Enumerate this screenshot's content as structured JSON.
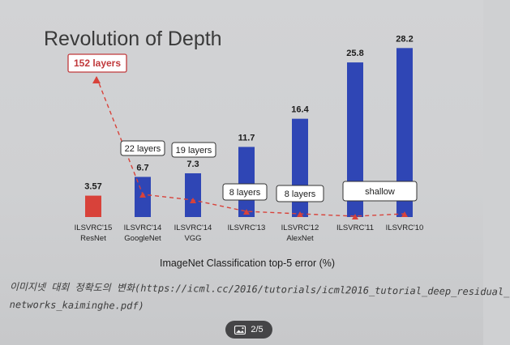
{
  "chart_data": {
    "type": "bar",
    "title": "Revolution of Depth",
    "xlabel": "ImageNet Classification top-5 error (%)",
    "ylabel": "",
    "ylim": [
      0,
      30
    ],
    "grid": false,
    "categories": [
      [
        "ILSVRC'15",
        "ResNet"
      ],
      [
        "ILSVRC'14",
        "GoogleNet"
      ],
      [
        "ILSVRC'14",
        "VGG"
      ],
      [
        "ILSVRC'13",
        ""
      ],
      [
        "ILSVRC'12",
        "AlexNet"
      ],
      [
        "ILSVRC'11",
        ""
      ],
      [
        "ILSVRC'10",
        ""
      ]
    ],
    "values": [
      3.57,
      6.7,
      7.3,
      11.7,
      16.4,
      25.8,
      28.2
    ],
    "value_labels": [
      "3.57",
      "6.7",
      "7.3",
      "11.7",
      "16.4",
      "25.8",
      "28.2"
    ],
    "bar_colors": [
      "#d8423a",
      "#2f46b5",
      "#2f46b5",
      "#2f46b5",
      "#2f46b5",
      "#2f46b5",
      "#2f46b5"
    ],
    "annotations": [
      {
        "text": "152 layers",
        "category_index": 0,
        "style": "red"
      },
      {
        "text": "22 layers",
        "category_index": 1,
        "style": "plain"
      },
      {
        "text": "19 layers",
        "category_index": 2,
        "style": "plain"
      },
      {
        "text": "8 layers",
        "category_index": 3,
        "style": "plain"
      },
      {
        "text": "8 layers",
        "category_index": 4,
        "style": "plain"
      },
      {
        "text": "shallow",
        "category_index": 5,
        "style": "plain"
      }
    ],
    "trend_line_color": "#d8423a"
  },
  "caption": {
    "line1": "이미지넷 대회 정확도의 변화(https://icml.cc/2016/tutorials/icml2016_tutorial_deep_residual_",
    "line2": "networks_kaiminghe.pdf)"
  },
  "viewer": {
    "page_indicator": "2/5",
    "icon": "gallery-icon"
  }
}
